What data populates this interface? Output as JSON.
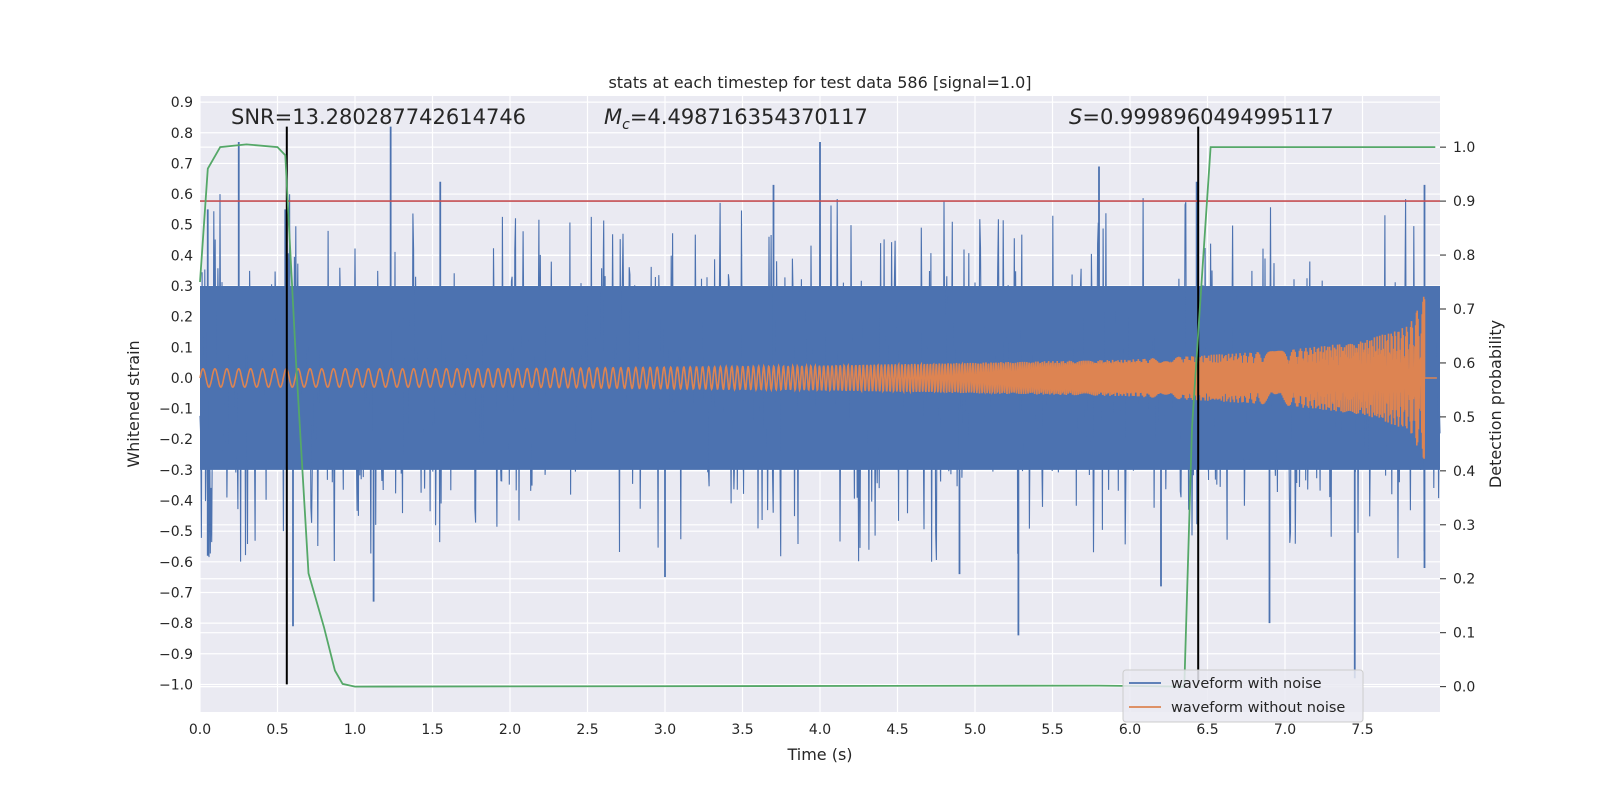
{
  "chart_data": {
    "type": "line",
    "title": "stats at each timestep for test data 586 [signal=1.0]",
    "xlabel": "Time (s)",
    "ylabel": "Whitened strain",
    "y2label": "Detection probability",
    "xlim": [
      0.0,
      8.0
    ],
    "ylim": [
      -1.09,
      0.92
    ],
    "y2lim": [
      -0.047,
      1.0948
    ],
    "x_ticks": [
      "0.0",
      "0.5",
      "1.0",
      "1.5",
      "2.0",
      "2.5",
      "3.0",
      "3.5",
      "4.0",
      "4.5",
      "5.0",
      "5.5",
      "6.0",
      "6.5",
      "7.0",
      "7.5"
    ],
    "y_ticks": [
      "0.9",
      "0.8",
      "0.7",
      "0.6",
      "0.5",
      "0.4",
      "0.3",
      "0.2",
      "0.1",
      "0.0",
      "−0.1",
      "−0.2",
      "−0.3",
      "−0.4",
      "−0.5",
      "−0.6",
      "−0.7",
      "−0.8",
      "−0.9",
      "−1.0"
    ],
    "y2_ticks": [
      "1.0",
      "0.9",
      "0.8",
      "0.7",
      "0.6",
      "0.5",
      "0.4",
      "0.3",
      "0.2",
      "0.1",
      "0.0"
    ],
    "grid": true,
    "legend_placement": "lower-right",
    "annotations": {
      "snr": "SNR=13.280287742614746",
      "mc_symbol": "M",
      "mc_sub": "c",
      "mc_value": "=4.498716354370117",
      "s_symbol": "S",
      "s_value": "=0.9998960494995117"
    },
    "series": [
      {
        "name": "waveform with noise",
        "color": "#4c72b0",
        "axis": "left",
        "description_values": {
          "typical_range": [
            -0.3,
            0.3
          ]
        },
        "peaks": [
          {
            "x": 0.05,
            "y": 0.55
          },
          {
            "x": 0.25,
            "y": 0.77
          },
          {
            "x": 0.55,
            "y": 0.55
          },
          {
            "x": 1.23,
            "y": 0.82
          },
          {
            "x": 1.55,
            "y": 0.64
          },
          {
            "x": 3.7,
            "y": 0.63
          },
          {
            "x": 4.0,
            "y": 0.77
          },
          {
            "x": 5.8,
            "y": 0.69
          },
          {
            "x": 6.43,
            "y": 0.64
          },
          {
            "x": 7.9,
            "y": 0.63
          }
        ],
        "troughs": [
          {
            "x": 0.05,
            "y": -0.58
          },
          {
            "x": 0.6,
            "y": -0.81
          },
          {
            "x": 1.12,
            "y": -0.73
          },
          {
            "x": 3.0,
            "y": -0.65
          },
          {
            "x": 4.9,
            "y": -0.64
          },
          {
            "x": 5.28,
            "y": -0.84
          },
          {
            "x": 6.2,
            "y": -0.68
          },
          {
            "x": 6.9,
            "y": -0.8
          },
          {
            "x": 7.45,
            "y": -0.98
          },
          {
            "x": 7.9,
            "y": -0.62
          }
        ]
      },
      {
        "name": "waveform without noise",
        "color": "#dd8452",
        "axis": "left",
        "amplitude": [
          {
            "x": 0.0,
            "y": 0.03
          },
          {
            "x": 2.0,
            "y": 0.03
          },
          {
            "x": 4.0,
            "y": 0.04
          },
          {
            "x": 6.0,
            "y": 0.06
          },
          {
            "x": 7.0,
            "y": 0.09
          },
          {
            "x": 7.5,
            "y": 0.12
          },
          {
            "x": 7.8,
            "y": 0.17
          },
          {
            "x": 7.9,
            "y": 0.27
          },
          {
            "x": 7.92,
            "y": 0.0
          }
        ]
      },
      {
        "name": "detection probability",
        "color": "#55a868",
        "axis": "right",
        "x": [
          0.0,
          0.05,
          0.13,
          0.3,
          0.5,
          0.55,
          0.62,
          0.7,
          0.8,
          0.87,
          0.92,
          1.0,
          5.8,
          6.35,
          6.4,
          6.45,
          6.52,
          7.97
        ],
        "y": [
          0.75,
          0.96,
          1.0,
          1.005,
          1.0,
          0.985,
          0.6,
          0.21,
          0.11,
          0.03,
          0.005,
          0.0,
          0.002,
          0.0,
          0.48,
          0.7,
          1.0,
          1.0
        ]
      }
    ],
    "threshold": {
      "axis": "right",
      "y": 0.9,
      "color": "#c44e52"
    },
    "vlines": [
      {
        "x": 0.56,
        "ymin": -1.0,
        "ymax": 0.82,
        "color": "#000000"
      },
      {
        "x": 6.44,
        "ymin": -1.0,
        "ymax": 0.82,
        "color": "#000000"
      }
    ]
  }
}
